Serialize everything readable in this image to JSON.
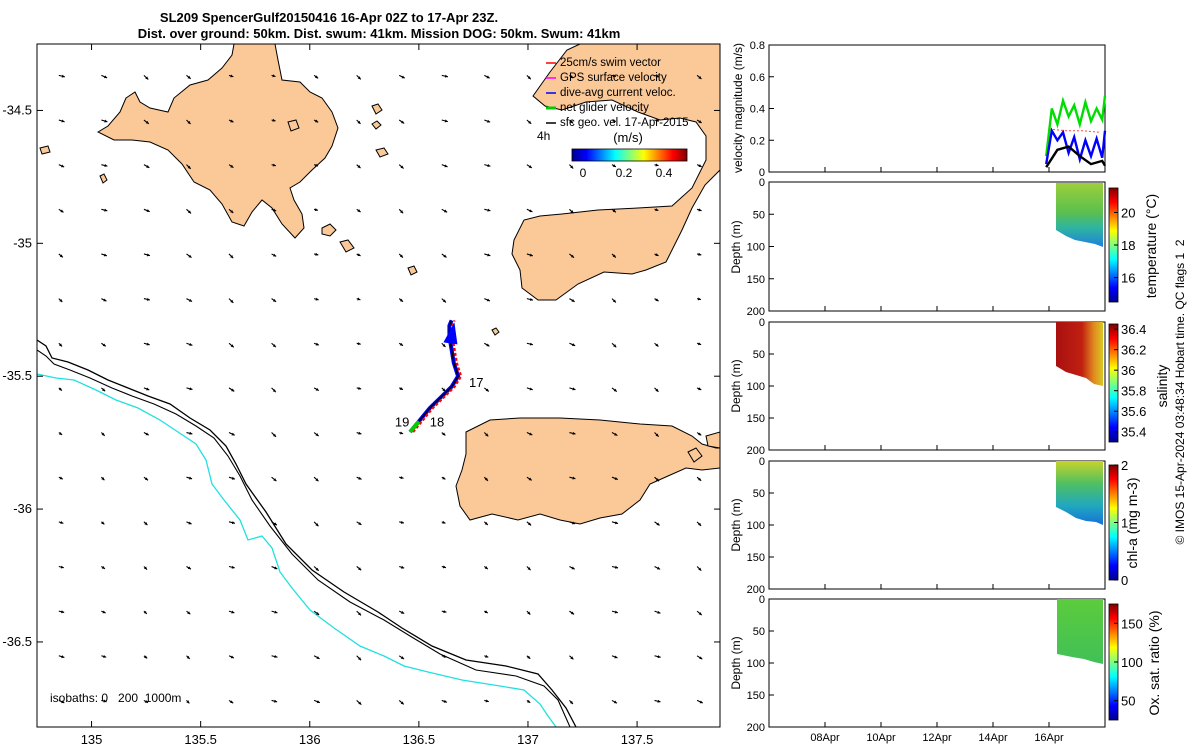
{
  "title": {
    "line1": "SL209 SpencerGulf20150416 16-Apr 02Z to 17-Apr 23Z.",
    "line2": "Dist. over ground: 50km. Dist. swum: 41km. Mission DOG: 50km. Swum: 41km"
  },
  "credit": "© IMOS 15-Apr-2024 03:48:34 Hobart time. QC flags 1  2",
  "colors": {
    "land": "#fbc898",
    "isobath_0": "#000000",
    "isobath_200": "#000000",
    "isobath_1000": "#22e0e0",
    "swim_vector": "#ff0000",
    "gps_velocity": "#ff00ff",
    "dive_avg_current": "#0000ff",
    "net_glider_velocity": "#00cc00",
    "sfc_geo_vel": "#000000"
  },
  "chart_data": [
    {
      "id": "map",
      "type": "scatter",
      "xlim": [
        134.75,
        137.88
      ],
      "ylim": [
        -36.82,
        -34.25
      ],
      "x_ticks": [
        135,
        135.5,
        136,
        136.5,
        137,
        137.5
      ],
      "x_tick_labels": [
        "135",
        "135.5",
        "136",
        "136.5",
        "137",
        "137.5"
      ],
      "y_ticks": [
        -34.5,
        -35,
        -35.5,
        -36,
        -36.5
      ],
      "y_tick_labels": [
        "-34.5",
        "-35",
        "-35.5",
        "-36",
        "-36.5"
      ],
      "legend": {
        "position": "top-right",
        "entries": [
          {
            "label": "25cm/s swim vector",
            "color": "#ff0000"
          },
          {
            "label": "GPS surface velocity",
            "color": "#ff00ff"
          },
          {
            "label": "dive-avg current veloc.",
            "color": "#0000ff"
          },
          {
            "label": "net glider velocity",
            "color": "#00cc00"
          },
          {
            "label": "sfc geo. vel. 17-Apr-2015",
            "color": "#000000"
          }
        ],
        "note": "4h"
      },
      "colorbar": {
        "label": "(m/s)",
        "ticks": [
          "0",
          "0.2",
          "0.4"
        ],
        "range": [
          0,
          0.5
        ]
      },
      "isobath_label": "isobaths: 0   200  1000m",
      "track": {
        "lon": [
          136.46,
          136.5,
          136.55,
          136.6,
          136.65,
          136.68,
          136.66,
          136.65,
          136.64,
          136.64,
          136.65
        ],
        "lat": [
          -35.71,
          -35.67,
          -35.62,
          -35.58,
          -35.54,
          -35.5,
          -35.45,
          -35.4,
          -35.35,
          -35.31,
          -35.29
        ]
      },
      "track_labels": [
        {
          "text": "17",
          "lon": 136.73,
          "lat": -35.54
        },
        {
          "text": "18",
          "lon": 136.55,
          "lat": -35.69
        },
        {
          "text": "19",
          "lon": 136.39,
          "lat": -35.69
        }
      ],
      "geo_velocity_field": {
        "lon_start": 134.85,
        "lon_step": 0.195,
        "lat_start": -36.72,
        "lat_step": 0.168,
        "u_mean": 0.045,
        "v_mean": -0.012
      }
    },
    {
      "id": "velocity",
      "type": "line",
      "ylabel": "velocity magnitude (m/s)",
      "ylim": [
        0,
        0.8
      ],
      "y_ticks": [
        0,
        0.2,
        0.4,
        0.6,
        0.8
      ],
      "y_tick_labels": [
        "0",
        "0.2",
        "0.4",
        "0.6",
        "0.8"
      ],
      "xlim": [
        6.0,
        18.0
      ],
      "series": [
        {
          "color": "#00dd00",
          "x": [
            15.9,
            16.1,
            16.3,
            16.5,
            16.7,
            16.9,
            17.1,
            17.3,
            17.5,
            17.7,
            17.9,
            18.0
          ],
          "values": [
            0.1,
            0.4,
            0.3,
            0.45,
            0.35,
            0.42,
            0.3,
            0.44,
            0.32,
            0.4,
            0.33,
            0.48
          ]
        },
        {
          "color": "#0000ff",
          "x": [
            15.9,
            16.1,
            16.3,
            16.5,
            16.7,
            16.9,
            17.1,
            17.3,
            17.5,
            17.7,
            17.9,
            18.0
          ],
          "values": [
            0.05,
            0.26,
            0.2,
            0.25,
            0.12,
            0.22,
            0.08,
            0.2,
            0.1,
            0.21,
            0.09,
            0.26
          ]
        },
        {
          "color": "#000000",
          "x": [
            15.9,
            16.3,
            16.7,
            17.1,
            17.5,
            17.9,
            18.0
          ],
          "values": [
            0.03,
            0.14,
            0.16,
            0.1,
            0.05,
            0.07,
            0.04
          ]
        },
        {
          "color": "#ff4040",
          "x": [
            16.0,
            16.6,
            17.2,
            17.8
          ],
          "values": [
            0.27,
            0.26,
            0.26,
            0.25
          ]
        }
      ]
    },
    {
      "id": "temperature",
      "type": "heatmap",
      "ylabel": "Depth (m)",
      "cbar_label": "temperature (°C)",
      "ylim": [
        200,
        0
      ],
      "clim": [
        14.5,
        21.5
      ],
      "cbar_ticks": [
        16,
        18,
        20
      ],
      "cbar_tick_labels": [
        "16",
        "18",
        "20"
      ],
      "x_range": [
        16.0,
        18.0
      ],
      "data_max_depth": [
        70,
        95
      ],
      "note": "upper layer 19-20 °C, cooler 16-17 °C near bottom"
    },
    {
      "id": "salinity",
      "type": "heatmap",
      "ylabel": "Depth (m)",
      "cbar_label": "salinity",
      "ylim": [
        200,
        0
      ],
      "clim": [
        35.3,
        36.45
      ],
      "cbar_ticks": [
        35.4,
        35.6,
        35.8,
        36,
        36.2,
        36.4
      ],
      "cbar_tick_labels": [
        "35.4",
        "35.6",
        "35.8",
        "36",
        "36.2",
        "36.4"
      ],
      "x_range": [
        16.0,
        18.0
      ],
      "data_max_depth": [
        85,
        100
      ],
      "note": "mostly 36.3-36.4, lower values 36.0-36.1 in upper right"
    },
    {
      "id": "chla",
      "type": "heatmap",
      "ylabel": "Depth (m)",
      "cbar_label": "chl-a (mg m-3)",
      "ylim": [
        200,
        0
      ],
      "clim": [
        0,
        2
      ],
      "cbar_ticks": [
        0,
        1,
        2
      ],
      "cbar_tick_labels": [
        "0",
        "1",
        "2"
      ],
      "x_range": [
        16.0,
        18.0
      ],
      "data_max_depth": [
        70,
        95
      ],
      "note": "1.1-1.5 near surface, lower toward bottom"
    },
    {
      "id": "oxygen",
      "type": "heatmap",
      "ylabel": "Depth (m)",
      "cbar_label": "Ox. sat. ratio (%)",
      "ylim": [
        200,
        0
      ],
      "clim": [
        25,
        175
      ],
      "cbar_ticks": [
        50,
        100,
        150
      ],
      "cbar_tick_labels": [
        "50",
        "100",
        "150"
      ],
      "x_range": [
        16.0,
        18.0
      ],
      "data_max_depth": [
        85,
        100
      ],
      "note": "uniform ~ 100-105 %"
    }
  ],
  "time_axis": {
    "ticks": [
      8,
      10,
      12,
      14,
      16
    ],
    "tick_labels": [
      "08Apr",
      "10Apr",
      "12Apr",
      "14Apr",
      "16Apr"
    ]
  },
  "depth_ticks": [
    0,
    50,
    100,
    150,
    200
  ],
  "depth_tick_labels": [
    "0",
    "50",
    "100",
    "150",
    "200"
  ]
}
